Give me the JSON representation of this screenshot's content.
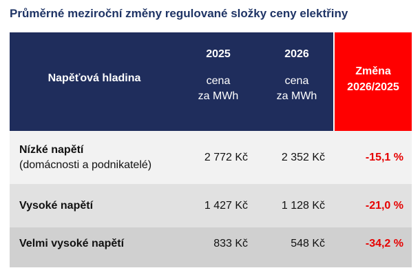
{
  "title": "Průměrné meziroční změny regulované složky ceny elektřiny",
  "table": {
    "header": {
      "label": "Napěťová hladina",
      "columns": [
        {
          "year": "2025",
          "unit": [
            "cena",
            "za MWh"
          ]
        },
        {
          "year": "2026",
          "unit": [
            "cena",
            "za MWh"
          ]
        }
      ],
      "change": [
        "Změna",
        "2026/2025"
      ]
    },
    "rows": [
      {
        "name": "Nízké napětí",
        "note": "(domácnosti a podnikatelé)",
        "values": [
          "2 772 Kč",
          "2 352 Kč"
        ],
        "change": "-15,1 %"
      },
      {
        "name": "Vysoké napětí",
        "values": [
          "1 427 Kč",
          "1 128 Kč"
        ],
        "change": "-21,0 %"
      },
      {
        "name": "Velmi vysoké napětí",
        "values": [
          "833 Kč",
          "548 Kč"
        ],
        "change": "-34,2 %"
      }
    ]
  }
}
